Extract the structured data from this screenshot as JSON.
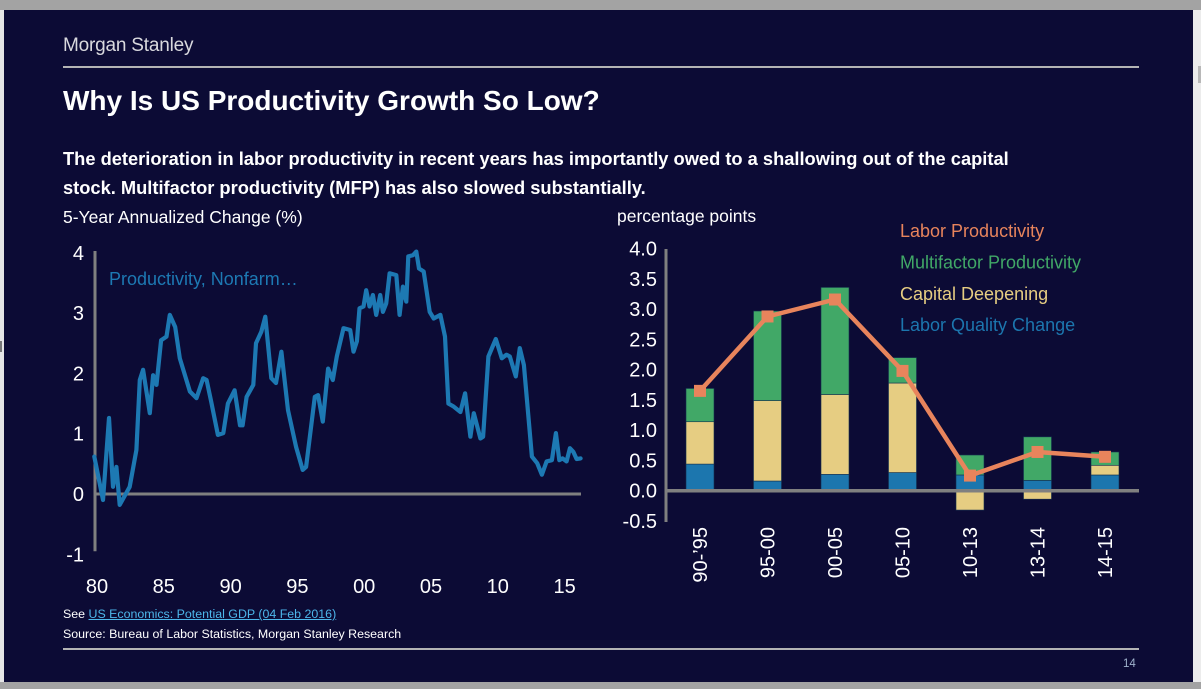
{
  "brand": "Morgan Stanley",
  "title": "Why Is US Productivity Growth So Low?",
  "subtitle_lines": [
    "The deterioration in labor productivity in recent years has importantly owed to a shallowing out of the capital",
    "stock. Multifactor productivity (MFP) has also slowed substantially."
  ],
  "footer": {
    "see_prefix": "See",
    "link_text": "US Economics: Potential GDP (04 Feb 2016)",
    "source": "Source: Bureau of Labor Statistics, Morgan Stanley Research",
    "page_number": "14"
  },
  "colors": {
    "background": "#0c0b35",
    "productivity_line": "#1d79b3",
    "labor_productivity": "#e8845c",
    "multifactor_productivity": "#41a867",
    "capital_deepening": "#e6cd82",
    "labor_quality_change": "#1c76ae",
    "axis": "#808080"
  },
  "chart_data": [
    {
      "type": "line",
      "title": "5-Year Annualized Change (%)",
      "xlabel": "",
      "ylabel": "",
      "series_label": "Productivity, Nonfarm…",
      "xlim": [
        1980,
        2016.3
      ],
      "ylim": [
        -1,
        4
      ],
      "y_ticks": [
        {
          "value": -1,
          "label": "-1"
        },
        {
          "value": 0,
          "label": "0"
        },
        {
          "value": 1,
          "label": "1"
        },
        {
          "value": 2,
          "label": "2"
        },
        {
          "value": 3,
          "label": "3"
        },
        {
          "value": 4,
          "label": "4"
        }
      ],
      "x_ticks": [
        {
          "value": 1980,
          "label": "80"
        },
        {
          "value": 1985,
          "label": "85"
        },
        {
          "value": 1990,
          "label": "90"
        },
        {
          "value": 1995,
          "label": "95"
        },
        {
          "value": 2000,
          "label": "00"
        },
        {
          "value": 2005,
          "label": "05"
        },
        {
          "value": 2010,
          "label": "10"
        },
        {
          "value": 2015,
          "label": "15"
        }
      ],
      "grid": false,
      "series": [
        {
          "name": "Productivity, Nonfarm Business",
          "points": [
            [
              1979.8,
              0.62
            ],
            [
              1980.45,
              -0.1
            ],
            [
              1980.9,
              1.26
            ],
            [
              1981.2,
              0.12
            ],
            [
              1981.45,
              0.45
            ],
            [
              1981.7,
              -0.18
            ],
            [
              1982.45,
              0.12
            ],
            [
              1982.95,
              0.73
            ],
            [
              1983.2,
              1.89
            ],
            [
              1983.45,
              2.06
            ],
            [
              1983.95,
              1.34
            ],
            [
              1984.2,
              1.97
            ],
            [
              1984.45,
              1.81
            ],
            [
              1984.8,
              2.55
            ],
            [
              1985.2,
              2.61
            ],
            [
              1985.45,
              2.97
            ],
            [
              1985.85,
              2.77
            ],
            [
              1986.2,
              2.25
            ],
            [
              1986.95,
              1.7
            ],
            [
              1987.45,
              1.59
            ],
            [
              1987.95,
              1.92
            ],
            [
              1988.2,
              1.89
            ],
            [
              1988.55,
              1.53
            ],
            [
              1989.05,
              0.98
            ],
            [
              1989.45,
              1.01
            ],
            [
              1989.8,
              1.5
            ],
            [
              1990.3,
              1.72
            ],
            [
              1990.7,
              1.14
            ],
            [
              1990.9,
              1.14
            ],
            [
              1991.2,
              1.61
            ],
            [
              1991.7,
              1.81
            ],
            [
              1991.9,
              2.5
            ],
            [
              1992.3,
              2.69
            ],
            [
              1992.6,
              2.94
            ],
            [
              1993.05,
              1.92
            ],
            [
              1993.4,
              1.84
            ],
            [
              1993.8,
              2.36
            ],
            [
              1994.3,
              1.39
            ],
            [
              1994.9,
              0.78
            ],
            [
              1995.4,
              0.4
            ],
            [
              1995.65,
              0.45
            ],
            [
              1996.3,
              1.61
            ],
            [
              1996.55,
              1.64
            ],
            [
              1996.9,
              1.2
            ],
            [
              1997.3,
              2.08
            ],
            [
              1997.65,
              1.89
            ],
            [
              1997.95,
              2.28
            ],
            [
              1998.45,
              2.75
            ],
            [
              1998.95,
              2.72
            ],
            [
              1999.2,
              2.36
            ],
            [
              1999.45,
              2.53
            ],
            [
              1999.65,
              3.08
            ],
            [
              1999.95,
              3.11
            ],
            [
              2000.15,
              3.38
            ],
            [
              2000.4,
              3.11
            ],
            [
              2000.65,
              3.3
            ],
            [
              2000.9,
              2.97
            ],
            [
              2001.2,
              3.3
            ],
            [
              2001.4,
              3.02
            ],
            [
              2001.65,
              3.16
            ],
            [
              2001.9,
              3.66
            ],
            [
              2002.4,
              3.63
            ],
            [
              2002.65,
              2.97
            ],
            [
              2002.9,
              3.44
            ],
            [
              2003.15,
              3.19
            ],
            [
              2003.3,
              3.94
            ],
            [
              2003.65,
              3.96
            ],
            [
              2003.9,
              4.02
            ],
            [
              2004.1,
              3.74
            ],
            [
              2004.45,
              3.69
            ],
            [
              2004.9,
              3.02
            ],
            [
              2005.2,
              2.91
            ],
            [
              2005.7,
              2.97
            ],
            [
              2006.05,
              2.61
            ],
            [
              2006.3,
              1.5
            ],
            [
              2006.7,
              1.45
            ],
            [
              2007.2,
              1.36
            ],
            [
              2007.55,
              1.67
            ],
            [
              2007.95,
              0.95
            ],
            [
              2008.2,
              1.34
            ],
            [
              2008.7,
              0.92
            ],
            [
              2008.9,
              0.95
            ],
            [
              2009.3,
              2.28
            ],
            [
              2009.85,
              2.57
            ],
            [
              2010.3,
              2.25
            ],
            [
              2010.65,
              2.31
            ],
            [
              2010.9,
              2.28
            ],
            [
              2011.35,
              1.95
            ],
            [
              2011.65,
              2.42
            ],
            [
              2011.95,
              2.14
            ],
            [
              2012.55,
              0.62
            ],
            [
              2012.95,
              0.51
            ],
            [
              2013.3,
              0.32
            ],
            [
              2013.65,
              0.54
            ],
            [
              2014.05,
              0.56
            ],
            [
              2014.35,
              1.01
            ],
            [
              2014.6,
              0.56
            ],
            [
              2014.85,
              0.59
            ],
            [
              2015.15,
              0.54
            ],
            [
              2015.4,
              0.76
            ],
            [
              2015.65,
              0.7
            ],
            [
              2015.9,
              0.58
            ],
            [
              2016.2,
              0.59
            ]
          ]
        }
      ]
    },
    {
      "type": "bar",
      "stacked": true,
      "title": "percentage points",
      "xlabel": "",
      "ylabel": "percentage points",
      "ylim": [
        -0.5,
        4.0
      ],
      "y_ticks": [
        "-0.5",
        "0.0",
        "0.5",
        "1.0",
        "1.5",
        "2.0",
        "2.5",
        "3.0",
        "3.5",
        "4.0"
      ],
      "categories": [
        "90-’95",
        "95-00",
        "00-05",
        "05-10",
        "10-13",
        "13-14",
        "14-15"
      ],
      "legend_position": "top-right",
      "grid": false,
      "series": [
        {
          "name": "Labor Quality Change",
          "kind": "bar",
          "values": [
            0.44,
            0.16,
            0.27,
            0.3,
            0.26,
            0.17,
            0.26
          ]
        },
        {
          "name": "Capital Deepening",
          "kind": "bar",
          "values": [
            0.7,
            1.33,
            1.32,
            1.48,
            -0.32,
            -0.14,
            0.16
          ]
        },
        {
          "name": "Multifactor Productivity",
          "kind": "bar",
          "values": [
            0.55,
            1.48,
            1.77,
            0.42,
            0.33,
            0.72,
            0.22
          ]
        },
        {
          "name": "Labor Productivity",
          "kind": "line",
          "values": [
            1.65,
            2.88,
            3.16,
            1.98,
            0.25,
            0.64,
            0.56
          ]
        }
      ],
      "legend": [
        "Labor Productivity",
        "Multifactor Productivity",
        "Capital Deepening",
        "Labor Quality Change"
      ]
    }
  ]
}
